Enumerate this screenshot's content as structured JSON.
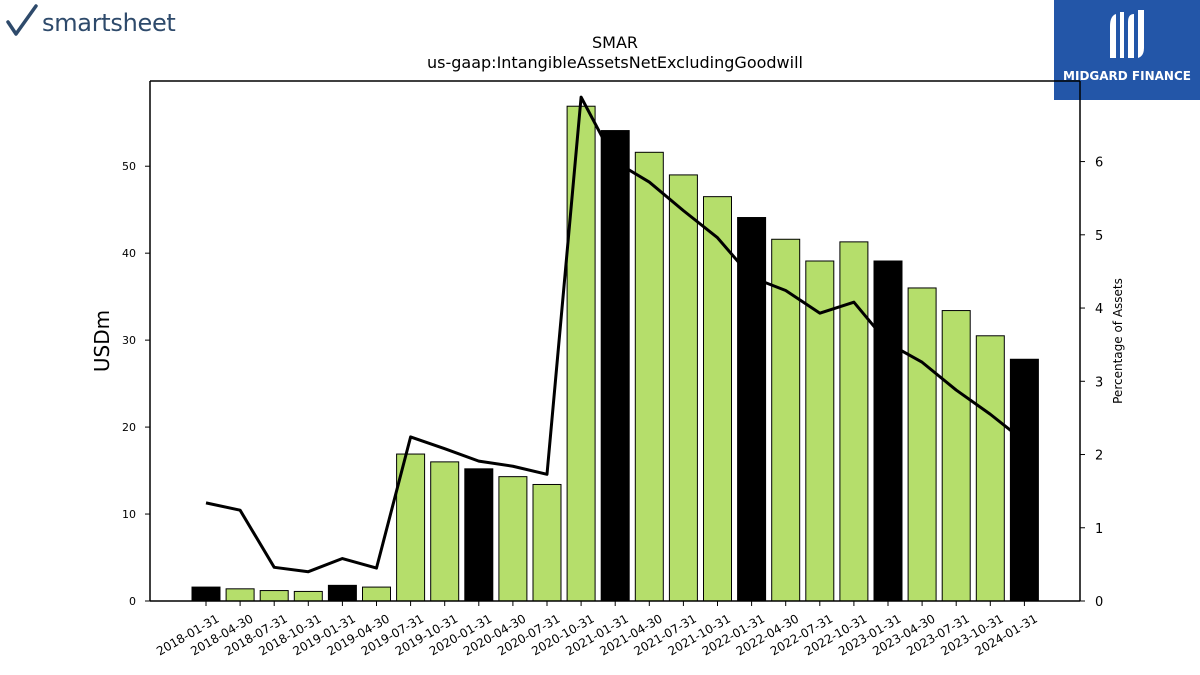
{
  "branding": {
    "left_logo": "smartsheet",
    "right_logo": "MIDGARD FINANCE"
  },
  "colors": {
    "highlight_bar": "#000000",
    "normal_bar": "#b5de6b",
    "line": "#000000"
  },
  "chart_data": {
    "type": "bar",
    "title": "SMAR",
    "subtitle": "us-gaap:IntangibleAssetsNetExcludingGoodwill",
    "ylabel": "USDm",
    "y2label": "Percentage of Assets",
    "ylim": [
      0,
      59.8
    ],
    "y2lim": [
      0,
      7.1
    ],
    "yticks": [
      0,
      10,
      20,
      30,
      40,
      50
    ],
    "y2ticks": [
      0,
      1,
      2,
      3,
      4,
      5,
      6
    ],
    "grid": false,
    "legend": "none",
    "categories": [
      "2018-01-31",
      "2018-04-30",
      "2018-07-31",
      "2018-10-31",
      "2019-01-31",
      "2019-04-30",
      "2019-07-31",
      "2019-10-31",
      "2020-01-31",
      "2020-04-30",
      "2020-07-31",
      "2020-10-31",
      "2021-01-31",
      "2021-04-30",
      "2021-07-31",
      "2021-10-31",
      "2022-01-31",
      "2022-04-30",
      "2022-07-31",
      "2022-10-31",
      "2023-01-31",
      "2023-04-30",
      "2023-07-31",
      "2023-10-31",
      "2024-01-31"
    ],
    "series": [
      {
        "kind": "bar",
        "axis": "left",
        "values": [
          1.6,
          1.4,
          1.2,
          1.1,
          1.8,
          1.6,
          16.9,
          16.0,
          15.2,
          14.3,
          13.4,
          56.9,
          54.1,
          51.6,
          49.0,
          46.5,
          44.1,
          41.6,
          39.1,
          41.3,
          39.1,
          36.0,
          33.4,
          30.5,
          27.8
        ],
        "highlight": [
          true,
          false,
          false,
          false,
          true,
          false,
          false,
          false,
          true,
          false,
          false,
          false,
          true,
          false,
          false,
          false,
          true,
          false,
          false,
          false,
          true,
          false,
          false,
          false,
          true
        ]
      },
      {
        "kind": "line",
        "axis": "right",
        "values": [
          1.34,
          1.24,
          0.46,
          0.4,
          0.58,
          0.45,
          2.24,
          2.08,
          1.91,
          1.84,
          1.73,
          6.88,
          6.0,
          5.72,
          5.33,
          4.96,
          4.42,
          4.24,
          3.93,
          4.08,
          3.52,
          3.26,
          2.88,
          2.55,
          2.18
        ]
      }
    ]
  }
}
